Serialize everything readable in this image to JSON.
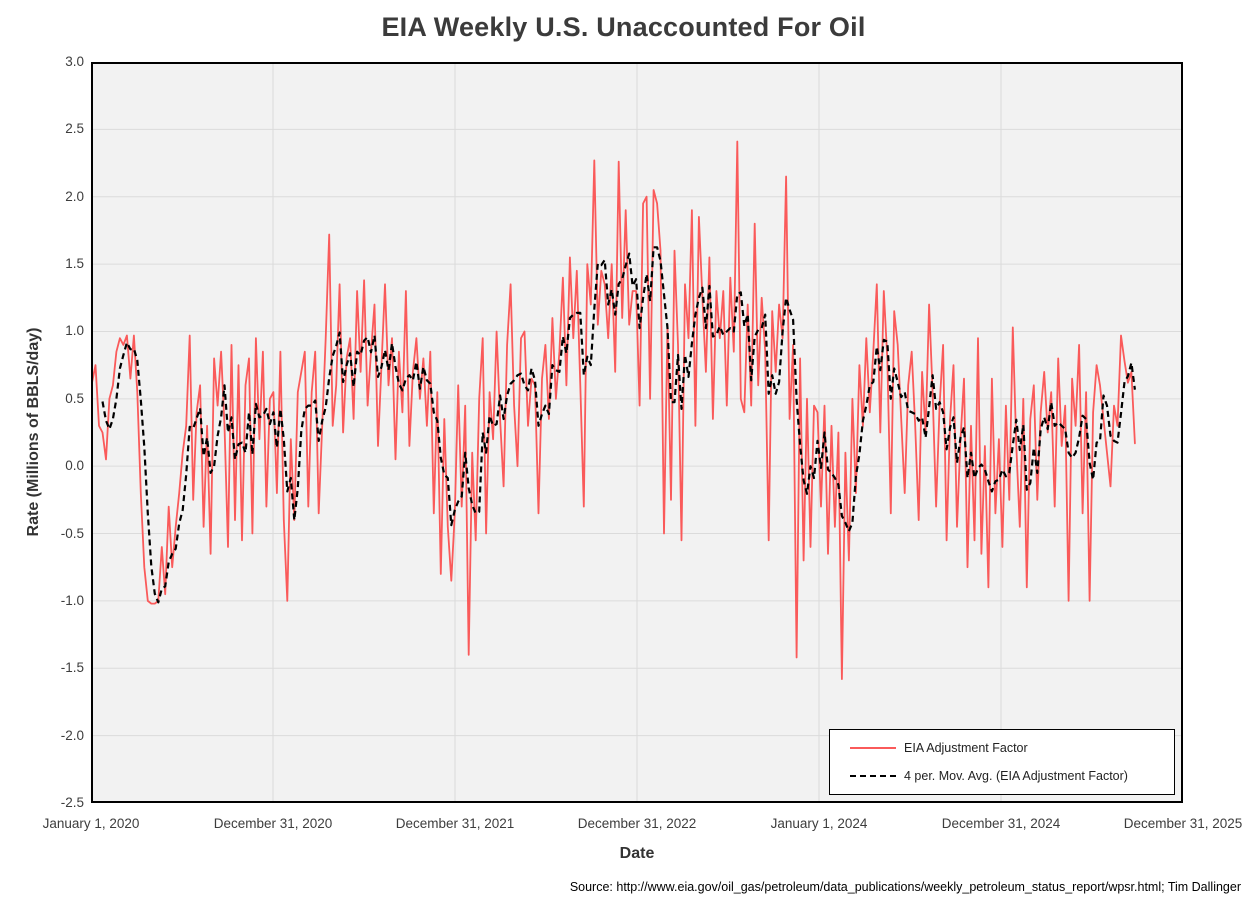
{
  "title": "EIA Weekly U.S. Unaccounted For Oil",
  "x_axis": {
    "title": "Date",
    "tick_labels": [
      "January 1, 2020",
      "December 31, 2020",
      "December 31, 2021",
      "December 31, 2022",
      "January 1, 2024",
      "December 31, 2024",
      "December 31, 2025"
    ]
  },
  "y_axis": {
    "title": "Rate (Millions of BBLS/day)",
    "tick_labels": [
      "3.0",
      "2.5",
      "2.0",
      "1.5",
      "1.0",
      "0.5",
      "0.0",
      "-0.5",
      "-1.0",
      "-1.5",
      "-2.0",
      "-2.5"
    ]
  },
  "legend": {
    "items": [
      {
        "label": "EIA Adjustment Factor",
        "style": "solid",
        "color": "#fa5a5a"
      },
      {
        "label": "4 per. Mov. Avg. (EIA Adjustment Factor)",
        "style": "dashed",
        "color": "#000000"
      }
    ]
  },
  "source": "Source: http://www.eia.gov/oil_gas/petroleum/data_publications/weekly_petroleum_status_report/wpsr.html; Tim Dallinger",
  "colors": {
    "series_red": "#fa5a5a",
    "series_black": "#000000",
    "plot_background": "#f2f2f2",
    "gridline": "#dbdbdb",
    "plot_border": "#000000",
    "title_text": "#3b3b3b",
    "legend_background": "#ffffff"
  },
  "chart_data": {
    "type": "line",
    "title": "EIA Weekly U.S. Unaccounted For Oil",
    "xlabel": "Date",
    "ylabel": "Rate (Millions of BBLS/day)",
    "ylim": [
      -2.5,
      3.0
    ],
    "ytick_step": 0.5,
    "grid": true,
    "legend_position": "inside bottom-right",
    "x_start_date": "2020-01-03",
    "x_interval_days": 7,
    "x_axis_span_years": 6,
    "x_tick_labels": [
      "January 1, 2020",
      "December 31, 2020",
      "December 31, 2021",
      "December 31, 2022",
      "January 1, 2024",
      "December 31, 2024",
      "December 31, 2025"
    ],
    "series": [
      {
        "name": "EIA Adjustment Factor",
        "color": "#fa5a5a",
        "style": "solid",
        "values": [
          0.62,
          0.75,
          0.3,
          0.25,
          0.05,
          0.5,
          0.6,
          0.85,
          0.95,
          0.9,
          0.97,
          0.65,
          0.97,
          0.55,
          -0.2,
          -0.75,
          -1.0,
          -1.02,
          -1.02,
          -1.0,
          -0.6,
          -0.95,
          -0.3,
          -0.75,
          -0.45,
          -0.2,
          0.1,
          0.3,
          0.97,
          -0.25,
          0.4,
          0.6,
          -0.45,
          0.3,
          -0.65,
          0.8,
          0.45,
          0.85,
          0.3,
          -0.6,
          0.9,
          -0.4,
          0.75,
          -0.55,
          0.6,
          0.8,
          -0.5,
          0.95,
          0.2,
          0.85,
          -0.3,
          0.5,
          0.55,
          -0.2,
          0.85,
          -0.4,
          -1.0,
          0.2,
          -0.4,
          0.55,
          0.7,
          0.85,
          -0.3,
          0.55,
          0.85,
          -0.35,
          0.3,
          0.95,
          1.72,
          0.3,
          0.6,
          1.35,
          0.25,
          0.8,
          0.95,
          0.35,
          1.3,
          0.7,
          1.38,
          0.45,
          0.85,
          1.2,
          0.15,
          0.75,
          1.35,
          0.6,
          0.95,
          0.05,
          0.85,
          0.4,
          1.3,
          0.15,
          0.7,
          0.95,
          0.5,
          0.8,
          0.3,
          0.85,
          -0.35,
          0.55,
          -0.8,
          0.35,
          -0.45,
          -0.85,
          -0.35,
          0.6,
          -0.3,
          0.45,
          -1.4,
          0.1,
          -0.55,
          0.5,
          0.95,
          -0.5,
          0.55,
          0.2,
          1.0,
          0.35,
          -0.15,
          0.9,
          1.35,
          0.45,
          0.0,
          0.95,
          1.0,
          0.3,
          0.65,
          0.6,
          -0.35,
          0.65,
          0.9,
          0.35,
          1.1,
          0.5,
          0.85,
          1.4,
          0.6,
          1.55,
          0.95,
          1.45,
          0.6,
          -0.3,
          1.5,
          1.2,
          2.27,
          1.05,
          1.45,
          1.35,
          0.95,
          1.5,
          0.7,
          2.26,
          1.1,
          1.9,
          1.05,
          1.3,
          1.3,
          0.45,
          1.95,
          2.0,
          0.5,
          2.05,
          1.95,
          1.6,
          -0.5,
          1.05,
          -0.25,
          1.6,
          0.9,
          -0.55,
          1.35,
          0.95,
          1.9,
          0.3,
          1.85,
          1.25,
          0.7,
          1.55,
          0.35,
          1.3,
          0.95,
          1.3,
          0.45,
          1.4,
          0.85,
          2.41,
          0.5,
          0.4,
          1.2,
          0.45,
          1.8,
          0.6,
          1.25,
          0.85,
          -0.55,
          1.15,
          0.7,
          1.2,
          0.95,
          2.15,
          0.35,
          0.9,
          -1.42,
          0.8,
          -0.7,
          0.5,
          -0.6,
          0.45,
          0.4,
          -0.3,
          0.45,
          -0.65,
          0.3,
          -0.45,
          0.25,
          -1.58,
          0.1,
          -0.7,
          0.5,
          -0.2,
          0.75,
          0.3,
          0.95,
          0.4,
          0.85,
          1.35,
          0.25,
          1.3,
          0.8,
          -0.35,
          1.15,
          0.9,
          0.35,
          -0.2,
          0.6,
          0.85,
          0.3,
          -0.4,
          0.7,
          0.25,
          1.2,
          0.55,
          -0.3,
          0.45,
          0.9,
          -0.55,
          0.35,
          0.75,
          -0.45,
          0.2,
          0.65,
          -0.75,
          0.3,
          -0.55,
          0.95,
          -0.65,
          0.15,
          -0.9,
          0.65,
          -0.35,
          0.2,
          -0.6,
          0.45,
          -0.25,
          1.03,
          0.15,
          -0.45,
          0.5,
          -0.9,
          0.35,
          0.6,
          -0.25,
          0.4,
          0.7,
          0.25,
          0.55,
          -0.3,
          0.8,
          0.15,
          0.45,
          -1.0,
          0.65,
          0.3,
          0.9,
          -0.35,
          0.55,
          -1.0,
          0.4,
          0.75,
          0.6,
          0.35,
          0.1,
          -0.15,
          0.45,
          0.3,
          0.97,
          0.78,
          0.62,
          0.7,
          0.17
        ]
      },
      {
        "name": "4 per. Mov. Avg. (EIA Adjustment Factor)",
        "color": "#000000",
        "style": "dashed",
        "derived": "4-week trailing moving average of the EIA Adjustment Factor series"
      }
    ]
  }
}
